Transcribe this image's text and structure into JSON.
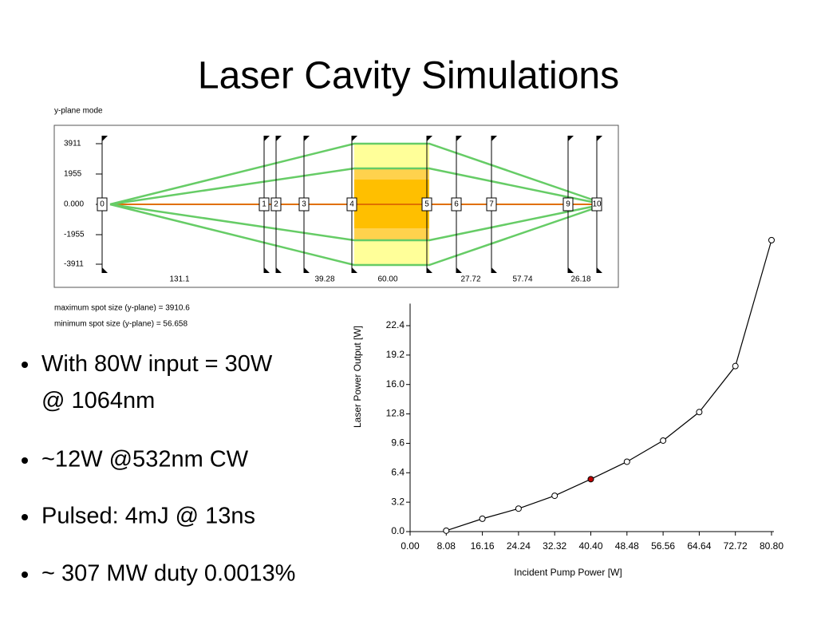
{
  "title": "Laser Cavity Simulations",
  "cavity": {
    "label": "y-plane mode",
    "yticks": [
      "3911",
      "1955",
      "0.000",
      "-1955",
      "-3911"
    ],
    "elements": [
      "0",
      "1",
      "2",
      "3",
      "4",
      "5",
      "6",
      "7",
      "9",
      "10"
    ],
    "distances": [
      "131.1",
      "39.28",
      "60.00",
      "27.72",
      "57.74",
      "26.18"
    ],
    "notes": [
      "maximum spot size (y-plane)  = 3910.6",
      "minimum spot size (y-plane)  =  56.658"
    ]
  },
  "bullets": [
    "With 80W input = 30W @ 1064nm",
    "~12W @532nm CW",
    "Pulsed: 4mJ @ 13ns",
    "~ 307 MW duty 0.0013%"
  ],
  "chart_data": {
    "type": "line",
    "x_label": "Incident Pump Power [W]",
    "y_label": "Laser Power Output [W]",
    "x": [
      8.08,
      16.16,
      24.24,
      32.32,
      40.4,
      48.48,
      56.56,
      64.64,
      72.72,
      80.8
    ],
    "values": [
      0.1,
      1.4,
      2.5,
      3.9,
      5.7,
      7.6,
      9.9,
      13.0,
      18.0,
      31.7
    ],
    "color": "#000000",
    "marker_color": "#ffffff",
    "highlight": {
      "index": 4,
      "color": "#c00000"
    },
    "xlim": [
      0,
      80.8
    ],
    "ylim": [
      0,
      24.8
    ],
    "xticks": [
      {
        "value": 0,
        "label": "0.00"
      },
      8.08,
      16.16,
      24.24,
      32.32,
      {
        "value": 40.4,
        "label": "40.40"
      },
      48.48,
      56.56,
      64.64,
      72.72,
      {
        "value": 80.8,
        "label": "80.80"
      }
    ],
    "yticks": [
      {
        "value": 0,
        "label": "0.0"
      },
      3.2,
      6.4,
      9.6,
      12.8,
      {
        "value": 16,
        "label": "16.0"
      },
      19.2,
      22.4
    ]
  }
}
